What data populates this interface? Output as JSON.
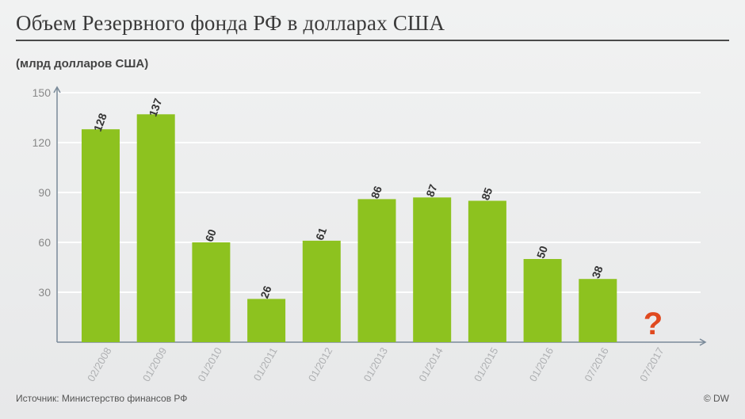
{
  "header": {
    "title": "Объем Резервного фонда РФ в долларах США",
    "unit": "(млрд долларов США)"
  },
  "footer": {
    "source": "Источник: Министерство финансов РФ",
    "copyright": "© DW"
  },
  "colors": {
    "bar": "#8dc21f",
    "grid": "#ffffff",
    "axis": "#7a8a99",
    "accent": "#e0491f"
  },
  "chart_data": {
    "type": "bar",
    "title": "Объем Резервного фонда РФ в долларах США",
    "ylabel": "(млрд долларов США)",
    "xlabel": "",
    "ylim": [
      0,
      150
    ],
    "yticks": [
      30,
      60,
      90,
      120,
      150
    ],
    "grid": true,
    "categories": [
      "02/2008",
      "01/2009",
      "01/2010",
      "01/2011",
      "01/2012",
      "01/2013",
      "01/2014",
      "01/2015",
      "01/2016",
      "07/2016",
      "07/2017"
    ],
    "values": [
      128,
      137,
      60,
      26,
      61,
      86,
      87,
      85,
      50,
      38,
      null
    ],
    "annotations": [
      {
        "category": "07/2017",
        "text": "?"
      }
    ]
  }
}
